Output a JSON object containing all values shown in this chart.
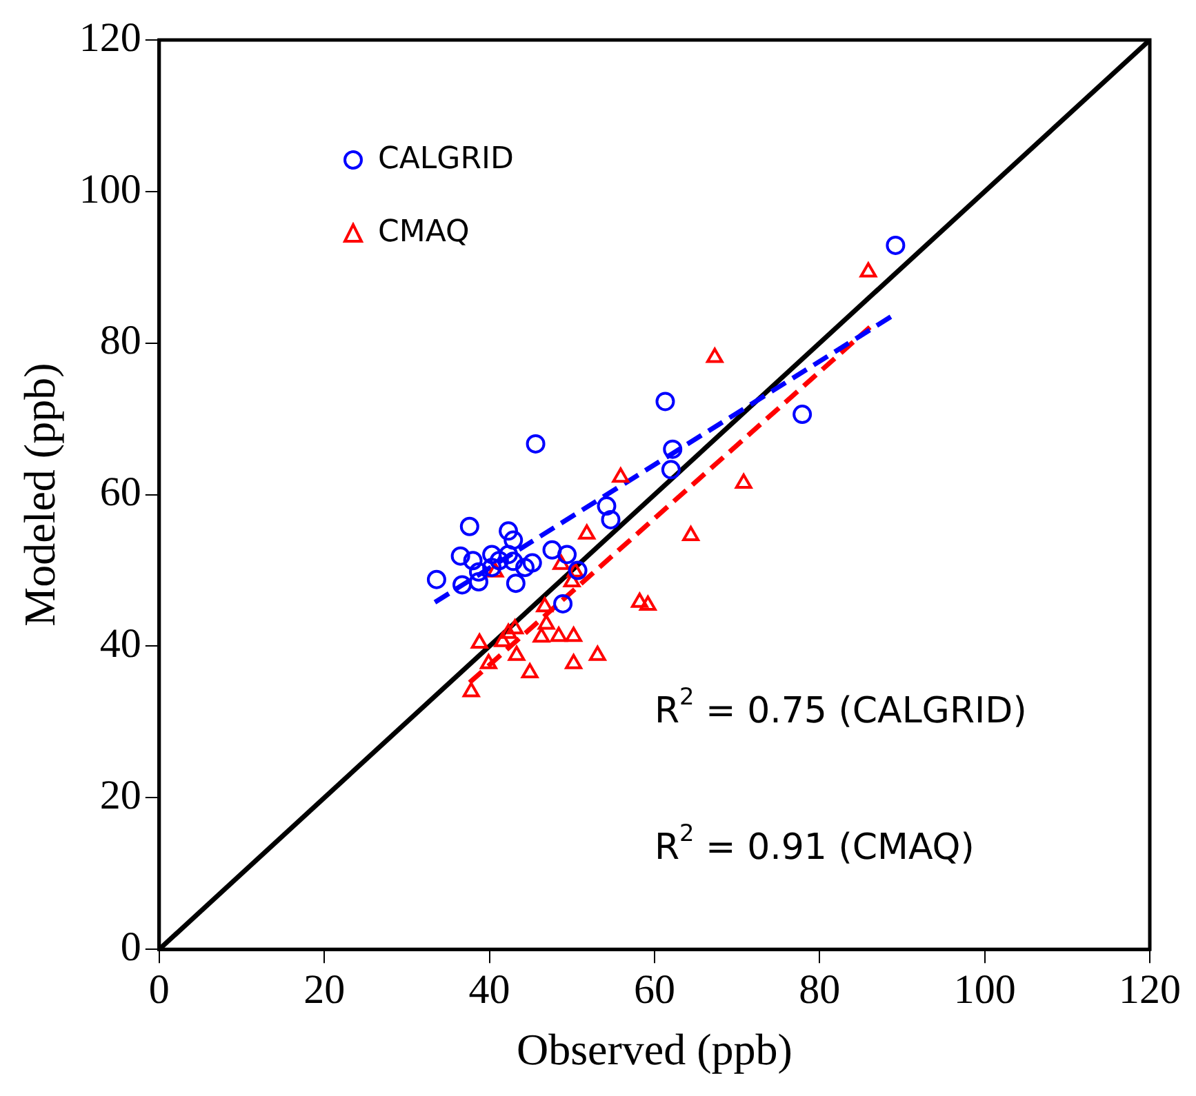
{
  "chart_data": {
    "type": "scatter",
    "xlabel": "Observed (ppb)",
    "ylabel": "Modeled (ppb)",
    "xlim": [
      0,
      120
    ],
    "ylim": [
      0,
      120
    ],
    "xticks": [
      0,
      20,
      40,
      60,
      80,
      100,
      120
    ],
    "yticks": [
      0,
      20,
      40,
      60,
      80,
      100,
      120
    ],
    "grid": false,
    "legend": "top left",
    "annotations": [
      "R$^{2}$ = 0.75 (CALGRID)",
      "R$^{2}$ = 0.91 (CMAQ)"
    ],
    "series": [
      {
        "name": "CALGRID",
        "type": "scatter",
        "marker": "circle",
        "color": "#0000ff",
        "x": [
          33.6,
          36.5,
          37.6,
          38.0,
          36.7,
          38.7,
          38.7,
          40.3,
          40.3,
          41.2,
          42.3,
          42.3,
          42.9,
          42.9,
          43.2,
          44.3,
          45.2,
          45.6,
          47.6,
          49.4,
          48.9,
          50.7,
          54.2,
          54.7,
          61.3,
          62.2,
          62.0,
          77.9,
          89.2
        ],
        "values": [
          48.8,
          51.9,
          55.8,
          51.3,
          48.1,
          49.8,
          48.5,
          52.1,
          50.4,
          51.3,
          55.2,
          52.1,
          54.0,
          51.2,
          48.3,
          50.4,
          51.0,
          66.7,
          52.7,
          52.1,
          45.6,
          50.0,
          58.5,
          56.7,
          72.3,
          66.0,
          63.3,
          70.6,
          92.9
        ]
      },
      {
        "name": "CMAQ",
        "type": "scatter",
        "marker": "triangle",
        "color": "#ff0000",
        "x": [
          38.8,
          37.8,
          39.9,
          40.7,
          41.6,
          42.3,
          43.1,
          43.3,
          44.9,
          46.3,
          46.9,
          46.7,
          48.4,
          50.2,
          48.7,
          50.0,
          50.4,
          50.2,
          51.8,
          53.1,
          55.9,
          58.2,
          59.2,
          64.4,
          70.8,
          67.3,
          85.9
        ],
        "values": [
          40.4,
          34.0,
          37.7,
          49.8,
          40.6,
          41.7,
          42.3,
          38.8,
          36.5,
          41.2,
          42.9,
          45.2,
          41.3,
          41.3,
          50.8,
          48.5,
          49.8,
          37.7,
          54.8,
          38.8,
          62.3,
          45.8,
          45.4,
          54.6,
          61.5,
          78.1,
          89.4
        ]
      },
      {
        "type": "line",
        "line_style": "dashed",
        "color": "#0000ff",
        "x": [
          33.4,
          89.4
        ],
        "values": [
          45.8,
          84.0
        ]
      },
      {
        "type": "line",
        "line_style": "dashed",
        "color": "#ff0000",
        "x": [
          37.6,
          86.1
        ],
        "values": [
          35.2,
          82.1
        ]
      },
      {
        "type": "line",
        "line_style": "solid",
        "color": "#000000",
        "x": [
          0,
          120
        ],
        "values": [
          0,
          120
        ]
      }
    ]
  }
}
